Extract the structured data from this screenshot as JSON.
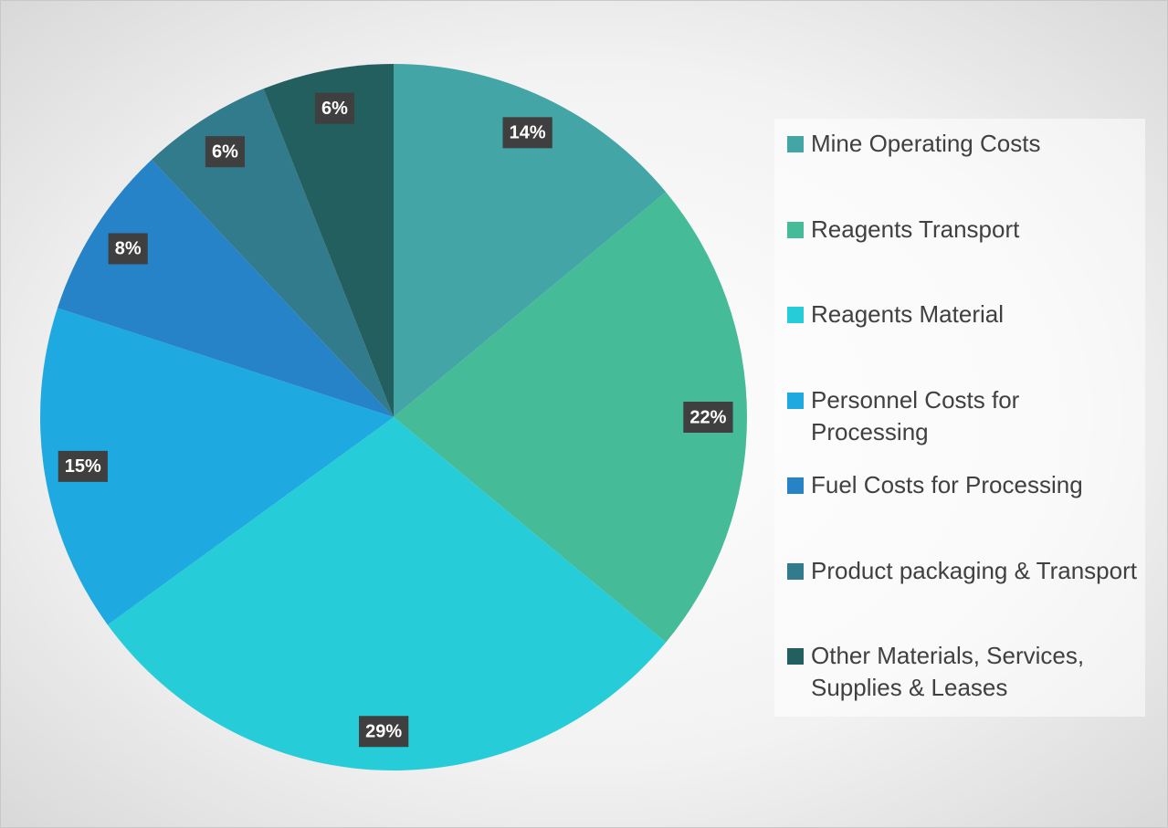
{
  "chart_data": {
    "type": "pie",
    "categories": [
      "Mine Operating Costs",
      "Reagents Transport",
      "Reagents Material",
      "Personnel Costs for Processing",
      "Fuel Costs for Processing",
      "Product packaging & Transport",
      "Other Materials, Services, Supplies & Leases"
    ],
    "values": [
      14,
      22,
      29,
      15,
      8,
      6,
      6
    ],
    "value_labels": [
      "14%",
      "22%",
      "29%",
      "15%",
      "8%",
      "6%",
      "6%"
    ],
    "colors": [
      "#43a5a5",
      "#45bb97",
      "#26cdd8",
      "#1ea9e1",
      "#2783c8",
      "#327b8c",
      "#235f5e"
    ],
    "legend": "right"
  }
}
